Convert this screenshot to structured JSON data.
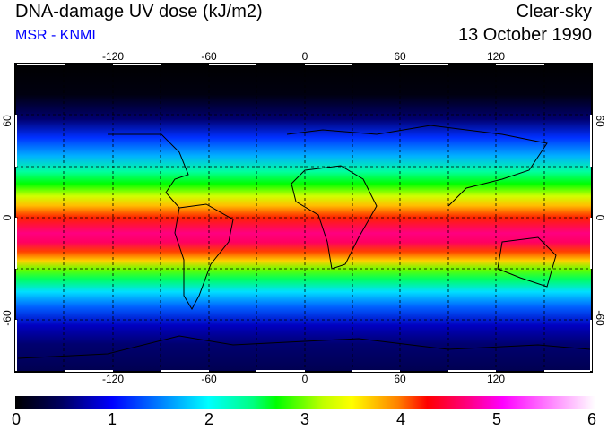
{
  "header": {
    "title": "DNA-damage UV dose (kJ/m2)",
    "subtitle": "MSR - KNMI",
    "mode": "Clear-sky",
    "date": "13 October 1990"
  },
  "map": {
    "lon_labels": [
      "-120",
      "-60",
      "0",
      "60",
      "120"
    ],
    "lat_labels_left": [
      "60",
      "0",
      "-60"
    ],
    "lat_labels_right": [
      "60",
      "0",
      "-60"
    ]
  },
  "colorbar": {
    "labels": [
      "0",
      "1",
      "2",
      "3",
      "4",
      "5",
      "6"
    ],
    "min": 0,
    "max": 6,
    "colors": [
      "#000000",
      "#0000ff",
      "#00ffff",
      "#00ff00",
      "#ffff00",
      "#ff0000",
      "#ff00ff",
      "#ffffff"
    ]
  }
}
